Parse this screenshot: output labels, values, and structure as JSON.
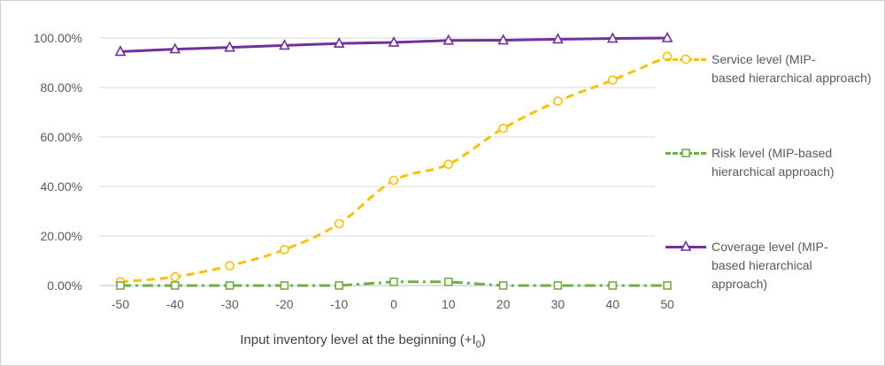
{
  "chart_data": {
    "type": "line",
    "xlabel": "Input inventory level at the beginning (+I",
    "xlabel_subscript": "0",
    "xlabel_suffix": ")",
    "ylabel": "",
    "x": [
      -50,
      -40,
      -30,
      -20,
      -10,
      0,
      10,
      20,
      30,
      40,
      50
    ],
    "x_tick_labels": [
      "-50",
      "-40",
      "-30",
      "-20",
      "-10",
      "0",
      "10",
      "20",
      "30",
      "40",
      "50"
    ],
    "ylim": [
      0,
      100
    ],
    "y_tick_labels": [
      "0.00%",
      "20.00%",
      "40.00%",
      "60.00%",
      "80.00%",
      "100.00%"
    ],
    "grid": true,
    "legend_position": "right",
    "series": [
      {
        "name": "Service level  (MIP-based hierarchical approach)",
        "values": [
          1.5,
          3.5,
          8,
          14.5,
          25,
          42.5,
          49,
          63.5,
          74.5,
          83,
          92.5
        ],
        "color": "#ffc000",
        "line_style": "dashed",
        "marker": "circle"
      },
      {
        "name": "Risk level (MIP-based hierarchical approach)",
        "values": [
          0,
          0,
          0,
          0,
          0,
          1.5,
          1.5,
          0,
          0,
          0,
          0
        ],
        "color": "#70ad47",
        "line_style": "dash-dot",
        "marker": "square"
      },
      {
        "name": "Coverage level (MIP-based hierarchical approach)",
        "values": [
          94.5,
          95.5,
          96.2,
          97,
          97.8,
          98.2,
          99,
          99.1,
          99.5,
          99.8,
          100
        ],
        "color": "#7030a0",
        "line_style": "solid",
        "marker": "triangle"
      }
    ]
  },
  "legend": [
    {
      "lines": [
        "Service level  (MIP-",
        "based hierarchical approach)"
      ]
    },
    {
      "lines": [
        "Risk level (MIP-based",
        "hierarchical approach)"
      ]
    },
    {
      "lines": [
        "Coverage level (MIP-",
        "based hierarchical",
        "approach)"
      ]
    }
  ]
}
